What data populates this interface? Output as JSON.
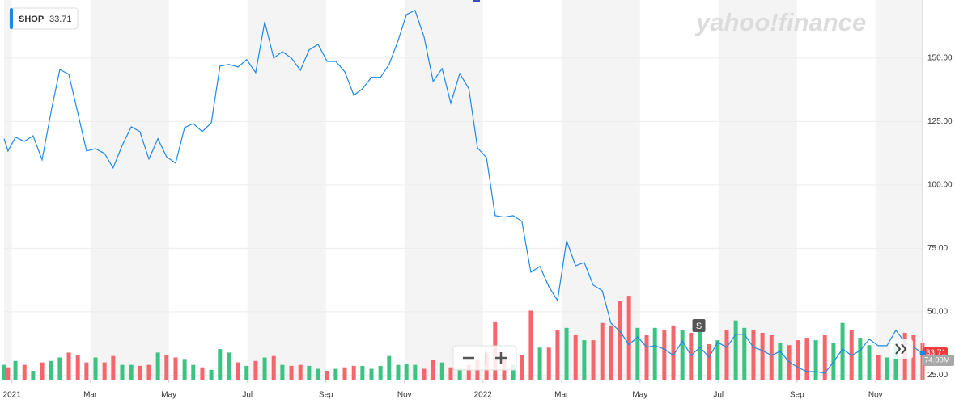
{
  "chart_data": {
    "type": "line",
    "watermark": "yahoo!finance",
    "series": [
      {
        "name": "SHOP",
        "color": "#1e88e5",
        "values": [
          118.2,
          113.4,
          118.8,
          117.2,
          119.4,
          109.9,
          129,
          145.5,
          143.6,
          128.3,
          113.4,
          114.3,
          112.4,
          106.7,
          115.6,
          122.9,
          121,
          110.2,
          118.2,
          111.1,
          108.6,
          122.6,
          124.2,
          121,
          124.5,
          146.8,
          147.5,
          146.5,
          149.4,
          144.3,
          164.3,
          150,
          152.5,
          150,
          145.2,
          153.2,
          155.4,
          148.7,
          148.7,
          144.6,
          135.3,
          137.9,
          142.4,
          142.4,
          147.5,
          157,
          167.2,
          168.8,
          158.3,
          140.8,
          145.9,
          132.2,
          143.9,
          137.9,
          114.6,
          110.8,
          87.9,
          87.3,
          87.9,
          85.7,
          65.6,
          67.9,
          59.9,
          54.4,
          78,
          68.1,
          69.4,
          60.5,
          58.3,
          45.5,
          42.3,
          37,
          40.1,
          36,
          36.6,
          35.3,
          32.8,
          38.5,
          32.8,
          36,
          32.1,
          37.9,
          36,
          41.1,
          41.1,
          36,
          34.7,
          32.8,
          34.4,
          30.2,
          28,
          26.4,
          26.4,
          25.8,
          30.2,
          35.3,
          32.8,
          34.7,
          39.2,
          36.6,
          36.6,
          42.7,
          37.9,
          36,
          33.71
        ]
      }
    ],
    "x": [
      -0.2,
      -0.1,
      0.09,
      0.32,
      0.54,
      0.77,
      1.0,
      1.22,
      1.45,
      1.68,
      1.9,
      2.13,
      2.36,
      2.58,
      2.81,
      3.04,
      3.26,
      3.49,
      3.72,
      3.94,
      4.17,
      4.4,
      4.62,
      4.85,
      5.08,
      5.3,
      5.53,
      5.76,
      5.98,
      6.21,
      6.44,
      6.67,
      6.89,
      7.12,
      7.35,
      7.57,
      7.8,
      8.03,
      8.25,
      8.48,
      8.71,
      8.93,
      9.16,
      9.39,
      9.61,
      9.84,
      10.05,
      10.27,
      10.5,
      10.73,
      10.96,
      11.18,
      11.41,
      11.64,
      11.86,
      12.09,
      12.31,
      12.54,
      12.77,
      12.99,
      13.22,
      13.45,
      13.68,
      13.9,
      14.13,
      14.36,
      14.58,
      14.81,
      15.04,
      15.26,
      15.49,
      15.72,
      15.94,
      16.17,
      16.38,
      16.62,
      16.85,
      17.08,
      17.3,
      17.53,
      17.76,
      17.98,
      18.21,
      18.44,
      18.66,
      18.89,
      19.12,
      19.35,
      19.57,
      19.8,
      20.03,
      20.25,
      20.48,
      20.71,
      20.93,
      21.16,
      21.39,
      21.61,
      21.84,
      22.07,
      22.29,
      22.52,
      22.75,
      22.97,
      23.2
    ],
    "volume": {
      "values": [
        30,
        25,
        38,
        30,
        18,
        35,
        38,
        45,
        55,
        50,
        35,
        45,
        35,
        48,
        30,
        30,
        28,
        30,
        55,
        50,
        45,
        42,
        30,
        25,
        20,
        62,
        55,
        35,
        28,
        38,
        45,
        48,
        30,
        28,
        30,
        28,
        22,
        18,
        22,
        25,
        28,
        28,
        22,
        28,
        48,
        30,
        32,
        30,
        22,
        40,
        35,
        25,
        22,
        30,
        40,
        55,
        118,
        40,
        30,
        50,
        140,
        65,
        65,
        100,
        105,
        90,
        80,
        80,
        115,
        110,
        160,
        170,
        105,
        90,
        105,
        100,
        110,
        100,
        95,
        100,
        72,
        80,
        100,
        120,
        105,
        100,
        95,
        90,
        75,
        70,
        80,
        85,
        80,
        90,
        75,
        115,
        100,
        85,
        70,
        50,
        45,
        75,
        95,
        90,
        74
      ],
      "last_label": "74.00M",
      "ylim": [
        0,
        180
      ],
      "up_color": "#3bc383",
      "down_color": "#f4666b"
    },
    "event_marker": {
      "label": "S",
      "x": 17.5
    },
    "xlim": [
      -0.2,
      23.2
    ],
    "ylim": [
      23.2,
      171.3
    ],
    "xticks": [
      {
        "value": 0,
        "label": "2021"
      },
      {
        "value": 2,
        "label": "Mar"
      },
      {
        "value": 4,
        "label": "May"
      },
      {
        "value": 6,
        "label": "Jul"
      },
      {
        "value": 8,
        "label": "Sep"
      },
      {
        "value": 10,
        "label": "Nov"
      },
      {
        "value": 12,
        "label": "2022"
      },
      {
        "value": 14,
        "label": "Mar"
      },
      {
        "value": 16,
        "label": "May"
      },
      {
        "value": 18,
        "label": "Jul"
      },
      {
        "value": 20,
        "label": "Sep"
      },
      {
        "value": 22,
        "label": "Nov"
      }
    ],
    "yticks": [
      {
        "value": 25,
        "label": "25.00"
      },
      {
        "value": 50,
        "label": "50.00"
      },
      {
        "value": 75,
        "label": "75.00"
      },
      {
        "value": 100,
        "label": "100.00"
      },
      {
        "value": 125,
        "label": "125.00"
      },
      {
        "value": 150,
        "label": "150.00"
      }
    ],
    "grid": true
  }
}
